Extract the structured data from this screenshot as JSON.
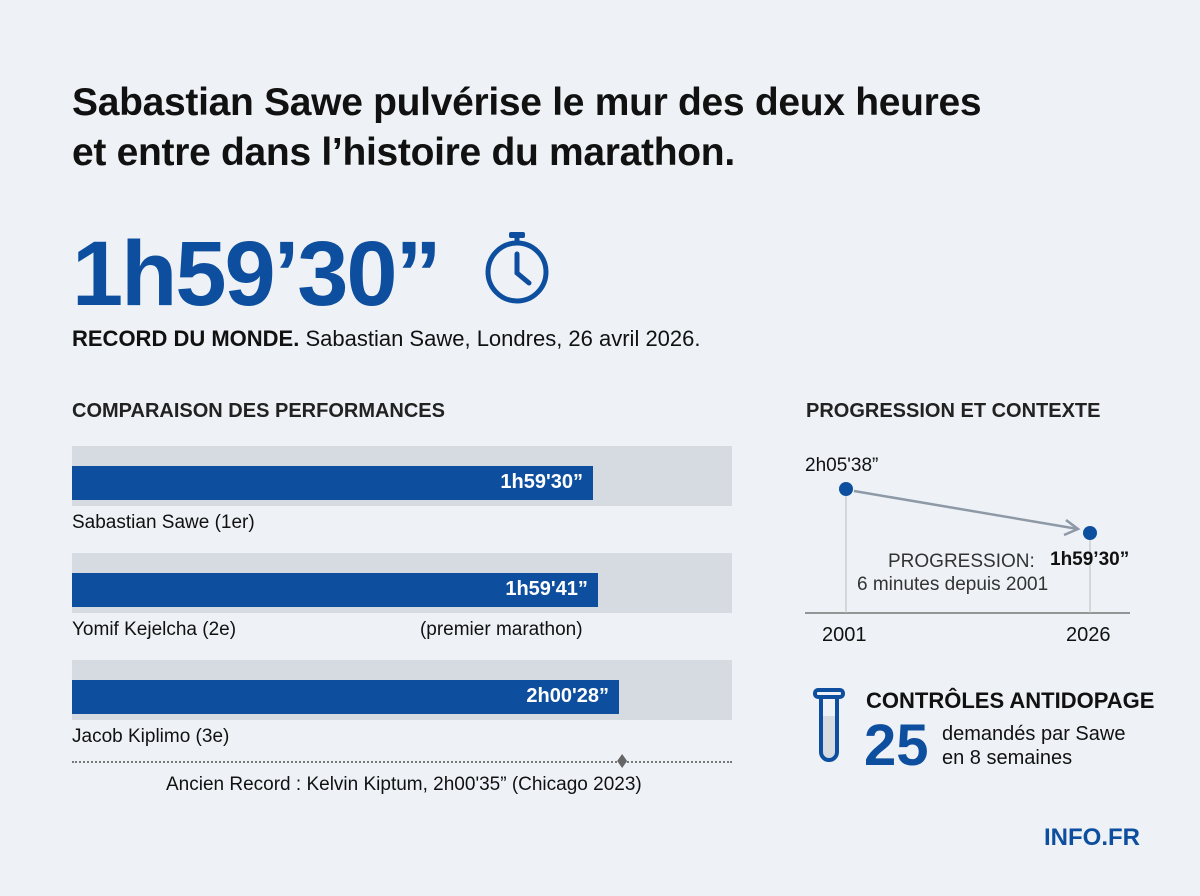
{
  "title_line1": "Sabastian Sawe pulvérise le mur des deux heures",
  "title_line2": "et entre dans l’histoire du marathon.",
  "record_time": "1h59’30”",
  "record_icon": "stopwatch-icon",
  "record_caption_bold": "RECORD DU MONDE.",
  "record_caption": "Sabastian Sawe, Londres, 26 avril 2026.",
  "colors": {
    "accent": "#0d4f9e",
    "track": "#d6dbe2",
    "background": "#eef2f6"
  },
  "chart_data": [
    {
      "type": "bar",
      "title": "COMPARAISON DES PERFORMANCES",
      "orientation": "horizontal",
      "categories": [
        "Sabastian Sawe (1er)",
        "Yomif Kejelcha (2e)",
        "Jacob Kiplimo (3e)"
      ],
      "values_seconds": [
        7170,
        7181,
        7228
      ],
      "data_labels": [
        "1h59'30”",
        "1h59'41”",
        "2h00'28”"
      ],
      "notes": [
        "",
        "(premier marathon)",
        ""
      ],
      "reference": {
        "label": "Ancien Record : Kelvin Kiptum, 2h00'35” (Chicago 2023)",
        "value_seconds": 7235
      }
    },
    {
      "type": "line",
      "title": "PROGRESSION ET CONTEXTE",
      "x": [
        2001,
        2026
      ],
      "y_seconds": [
        7538,
        7170
      ],
      "point_labels": [
        "2h05'38”",
        "1h59’30”"
      ],
      "tick_labels": [
        "2001",
        "2026"
      ],
      "annotation_line1": "PROGRESSION:",
      "annotation_line2": "6 minutes depuis 2001"
    }
  ],
  "doping": {
    "icon": "test-tube-icon",
    "title": "CONTRÔLES ANTIDOPAGE",
    "count": "25",
    "line1": "demandés par Sawe",
    "line2": "en 8 semaines"
  },
  "brand": "INFO.FR"
}
